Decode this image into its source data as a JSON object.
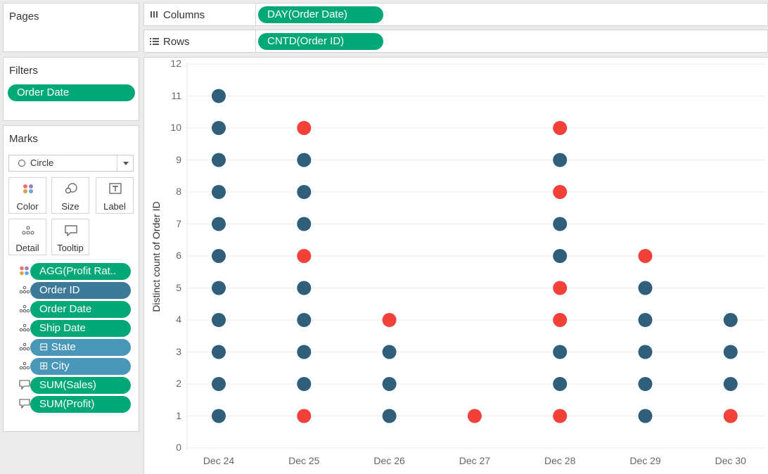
{
  "pages": {
    "title": "Pages"
  },
  "filters": {
    "title": "Filters",
    "pills": [
      "Order Date"
    ]
  },
  "marks": {
    "title": "Marks",
    "mark_type": "Circle",
    "buttons": [
      "Color",
      "Size",
      "Label",
      "Detail",
      "Tooltip"
    ],
    "pills": [
      {
        "icon": "color-icon",
        "label": "AGG(Profit Rat..",
        "color": "green"
      },
      {
        "icon": "detail-icon",
        "label": "Order ID",
        "color": "blue"
      },
      {
        "icon": "detail-icon",
        "label": "Order Date",
        "color": "green"
      },
      {
        "icon": "detail-icon",
        "label": "Ship Date",
        "color": "green"
      },
      {
        "icon": "detail-icon",
        "label": "State",
        "color": "lightblue",
        "prefix": "⊟"
      },
      {
        "icon": "detail-icon",
        "label": "City",
        "color": "lightblue",
        "prefix": "⊞"
      },
      {
        "icon": "tooltip-icon",
        "label": "SUM(Sales)",
        "color": "green"
      },
      {
        "icon": "tooltip-icon",
        "label": "SUM(Profit)",
        "color": "green"
      }
    ]
  },
  "shelves": {
    "columns": {
      "label": "Columns",
      "pill": "DAY(Order Date)"
    },
    "rows": {
      "label": "Rows",
      "pill": "CNTD(Order ID)"
    }
  },
  "colors": {
    "positive": "#2f5f7a",
    "negative": "#f2403a",
    "pill_green": "#00a878",
    "pill_blue": "#3d7a99",
    "pill_lightblue": "#4997b8"
  },
  "chart_data": {
    "type": "scatter",
    "ylabel": "Distinct count of Order ID",
    "xlabel": "",
    "categories": [
      "Dec 24",
      "Dec 25",
      "Dec 26",
      "Dec 27",
      "Dec 28",
      "Dec 29",
      "Dec 30"
    ],
    "ylim": [
      0,
      12
    ],
    "yticks": [
      0,
      1,
      2,
      3,
      4,
      5,
      6,
      7,
      8,
      9,
      10,
      11,
      12
    ],
    "grid": true,
    "points": [
      {
        "x": "Dec 24",
        "y": 1,
        "color": "positive"
      },
      {
        "x": "Dec 24",
        "y": 2,
        "color": "positive"
      },
      {
        "x": "Dec 24",
        "y": 3,
        "color": "positive"
      },
      {
        "x": "Dec 24",
        "y": 4,
        "color": "positive"
      },
      {
        "x": "Dec 24",
        "y": 5,
        "color": "positive"
      },
      {
        "x": "Dec 24",
        "y": 6,
        "color": "positive"
      },
      {
        "x": "Dec 24",
        "y": 7,
        "color": "positive"
      },
      {
        "x": "Dec 24",
        "y": 8,
        "color": "positive"
      },
      {
        "x": "Dec 24",
        "y": 9,
        "color": "positive"
      },
      {
        "x": "Dec 24",
        "y": 10,
        "color": "positive"
      },
      {
        "x": "Dec 24",
        "y": 11,
        "color": "positive"
      },
      {
        "x": "Dec 25",
        "y": 1,
        "color": "negative"
      },
      {
        "x": "Dec 25",
        "y": 2,
        "color": "positive"
      },
      {
        "x": "Dec 25",
        "y": 3,
        "color": "positive"
      },
      {
        "x": "Dec 25",
        "y": 4,
        "color": "positive"
      },
      {
        "x": "Dec 25",
        "y": 5,
        "color": "positive"
      },
      {
        "x": "Dec 25",
        "y": 6,
        "color": "negative"
      },
      {
        "x": "Dec 25",
        "y": 7,
        "color": "positive"
      },
      {
        "x": "Dec 25",
        "y": 8,
        "color": "positive"
      },
      {
        "x": "Dec 25",
        "y": 9,
        "color": "positive"
      },
      {
        "x": "Dec 25",
        "y": 10,
        "color": "negative"
      },
      {
        "x": "Dec 26",
        "y": 1,
        "color": "positive"
      },
      {
        "x": "Dec 26",
        "y": 2,
        "color": "positive"
      },
      {
        "x": "Dec 26",
        "y": 3,
        "color": "positive"
      },
      {
        "x": "Dec 26",
        "y": 4,
        "color": "negative"
      },
      {
        "x": "Dec 27",
        "y": 1,
        "color": "negative"
      },
      {
        "x": "Dec 28",
        "y": 1,
        "color": "negative"
      },
      {
        "x": "Dec 28",
        "y": 2,
        "color": "positive"
      },
      {
        "x": "Dec 28",
        "y": 3,
        "color": "positive"
      },
      {
        "x": "Dec 28",
        "y": 4,
        "color": "negative"
      },
      {
        "x": "Dec 28",
        "y": 5,
        "color": "negative"
      },
      {
        "x": "Dec 28",
        "y": 6,
        "color": "positive"
      },
      {
        "x": "Dec 28",
        "y": 7,
        "color": "positive"
      },
      {
        "x": "Dec 28",
        "y": 8,
        "color": "negative"
      },
      {
        "x": "Dec 28",
        "y": 9,
        "color": "positive"
      },
      {
        "x": "Dec 28",
        "y": 10,
        "color": "negative"
      },
      {
        "x": "Dec 29",
        "y": 1,
        "color": "positive"
      },
      {
        "x": "Dec 29",
        "y": 2,
        "color": "positive"
      },
      {
        "x": "Dec 29",
        "y": 3,
        "color": "positive"
      },
      {
        "x": "Dec 29",
        "y": 4,
        "color": "positive"
      },
      {
        "x": "Dec 29",
        "y": 5,
        "color": "positive"
      },
      {
        "x": "Dec 29",
        "y": 6,
        "color": "negative"
      },
      {
        "x": "Dec 30",
        "y": 1,
        "color": "negative"
      },
      {
        "x": "Dec 30",
        "y": 2,
        "color": "positive"
      },
      {
        "x": "Dec 30",
        "y": 3,
        "color": "positive"
      },
      {
        "x": "Dec 30",
        "y": 4,
        "color": "positive"
      }
    ]
  }
}
